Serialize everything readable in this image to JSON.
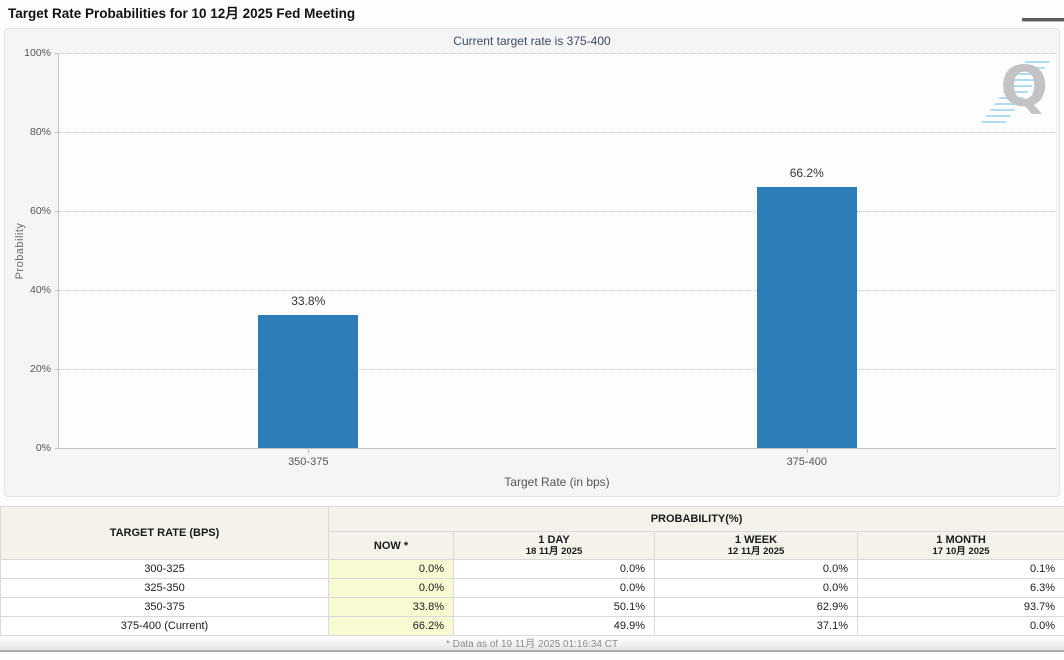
{
  "header": {
    "title": "Target Rate Probabilities for 10 12月 2025 Fed Meeting"
  },
  "chart_data": {
    "type": "bar",
    "title": "Current target rate is 375-400",
    "categories": [
      "350-375",
      "375-400"
    ],
    "values": [
      33.8,
      66.2
    ],
    "value_labels": [
      "33.8%",
      "66.2%"
    ],
    "xlabel": "Target Rate (in bps)",
    "ylabel": "Probability",
    "ylim": [
      0,
      100
    ],
    "yticks": [
      0,
      20,
      40,
      60,
      80,
      100
    ],
    "ytick_labels": [
      "0%",
      "20%",
      "40%",
      "60%",
      "80%",
      "100%"
    ],
    "grid": "horizontal-dotted",
    "legend": "none",
    "bar_color": "#2d7eb8",
    "watermark": "Q"
  },
  "table": {
    "row_header": "TARGET RATE (BPS)",
    "group_header": "PROBABILITY(%)",
    "columns": [
      {
        "label": "NOW *",
        "sub": ""
      },
      {
        "label": "1 DAY",
        "sub": "18 11月 2025"
      },
      {
        "label": "1 WEEK",
        "sub": "12 11月 2025"
      },
      {
        "label": "1 MONTH",
        "sub": "17 10月 2025"
      }
    ],
    "rows": [
      {
        "rate": "300-325",
        "now": "0.0%",
        "day": "0.0%",
        "week": "0.0%",
        "month": "0.1%"
      },
      {
        "rate": "325-350",
        "now": "0.0%",
        "day": "0.0%",
        "week": "0.0%",
        "month": "6.3%"
      },
      {
        "rate": "350-375",
        "now": "33.8%",
        "day": "50.1%",
        "week": "62.9%",
        "month": "93.7%"
      },
      {
        "rate": "375-400 (Current)",
        "now": "66.2%",
        "day": "49.9%",
        "week": "37.1%",
        "month": "0.0%"
      }
    ]
  },
  "footer": {
    "note": "* Data as of 19 11月 2025 01:16:34 CT"
  },
  "colors": {
    "bar": "#2d7eb8",
    "now_column_highlight": "#fafad2",
    "table_header_bg": "#f4f2ea",
    "subtitle_text": "#3b4a66"
  }
}
